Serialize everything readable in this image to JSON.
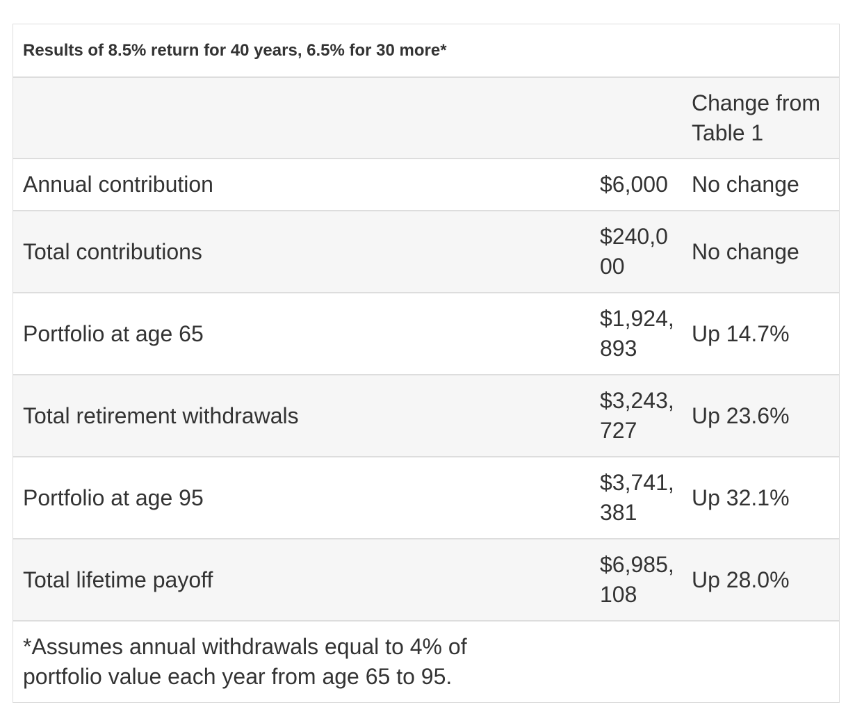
{
  "table": {
    "caption": "Results of 8.5% return for 40 years, 6.5% for 30 more*",
    "header": {
      "label": "",
      "value": "",
      "change": "Change from Table 1"
    },
    "rows": [
      {
        "label": "Annual contribution",
        "value": "$6,000",
        "change": "No change"
      },
      {
        "label": "Total contributions",
        "value": "$240,000",
        "change": "No change"
      },
      {
        "label": "Portfolio at age 65",
        "value": "$1,924,893",
        "change": "Up 14.7%"
      },
      {
        "label": "Total retirement withdrawals",
        "value": "$3,243,727",
        "change": "Up 23.6%"
      },
      {
        "label": "Portfolio at age 95",
        "value": "$3,741,381",
        "change": "Up 32.1%"
      },
      {
        "label": "Total lifetime payoff",
        "value": "$6,985,108",
        "change": "Up 28.0%"
      }
    ],
    "footnote": "*Assumes annual withdrawals equal to 4% of portfolio value each year from age 65 to 95."
  }
}
